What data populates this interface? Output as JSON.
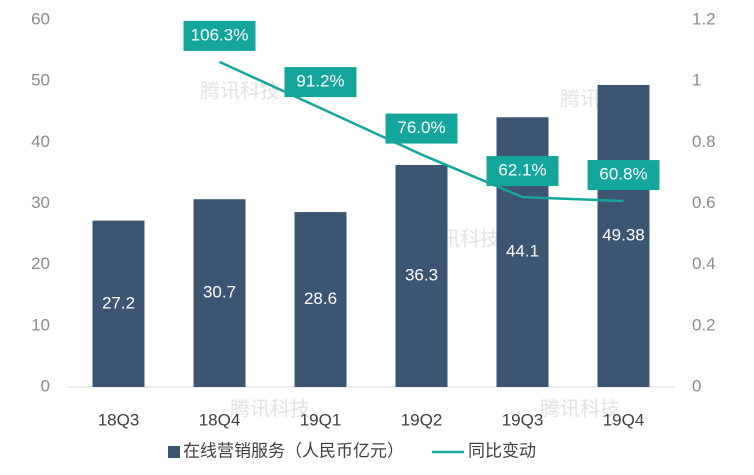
{
  "chart_data": {
    "type": "bar",
    "watermark": "腾讯科技",
    "categories": [
      "18Q3",
      "18Q4",
      "19Q1",
      "19Q2",
      "19Q3",
      "19Q4"
    ],
    "series": [
      {
        "name": "在线营销服务（人民币亿元）",
        "type": "bar",
        "color": "#3b5573",
        "values": [
          27.2,
          30.7,
          28.6,
          36.3,
          44.1,
          49.38
        ]
      },
      {
        "name": "同比变动",
        "type": "line",
        "axis": "y2",
        "color": "#14a69b",
        "values": [
          null,
          1.063,
          0.912,
          0.76,
          0.621,
          0.608
        ],
        "value_labels": [
          null,
          "106.3%",
          "91.2%",
          "76.0%",
          "62.1%",
          "60.8%"
        ]
      }
    ],
    "ylim": [
      0,
      60
    ],
    "yticks": [
      0,
      10,
      20,
      30,
      40,
      50,
      60
    ],
    "y2lim": [
      0,
      1.2
    ],
    "y2ticks": [
      0,
      0.2,
      0.4,
      0.6,
      0.8,
      1,
      1.2
    ],
    "grid": false,
    "legend": "bottom"
  }
}
